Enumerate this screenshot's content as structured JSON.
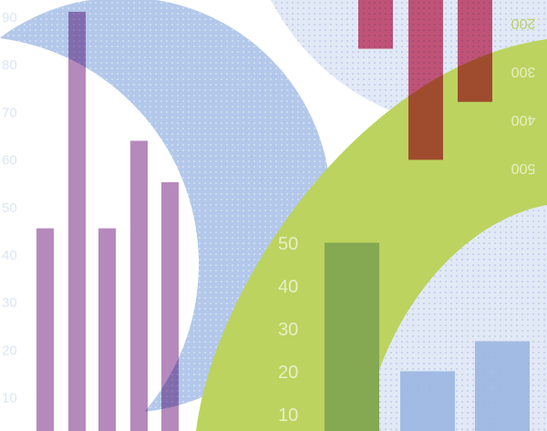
{
  "colors": {
    "blue_circle": "#b3c8ea",
    "pale_blue": "#e2e9f6",
    "green": "#bcd35f",
    "purple_bar": "#b07fb8",
    "red_bar": "#d4496c",
    "green_bar": "#85a852",
    "blue_bar": "#9bb6e2",
    "left_axis_text": "#dbe5f4",
    "green_axis_text": "#e6efc6"
  },
  "left_axis": {
    "labels": [
      "90",
      "80",
      "70",
      "60",
      "50",
      "40",
      "30",
      "20",
      "10"
    ]
  },
  "green_axis": {
    "labels": [
      "50",
      "40",
      "30",
      "20",
      "10"
    ]
  },
  "flipped_axis": {
    "labels": [
      "200",
      "300",
      "400",
      "500"
    ]
  },
  "purple_bars": {
    "values": [
      44,
      91,
      44,
      63,
      54
    ]
  },
  "red_bars": {
    "values": [
      250,
      480,
      360
    ]
  },
  "green_bars": {
    "values": [
      48
    ]
  },
  "blue_bars": {
    "values": [
      18,
      25
    ]
  }
}
